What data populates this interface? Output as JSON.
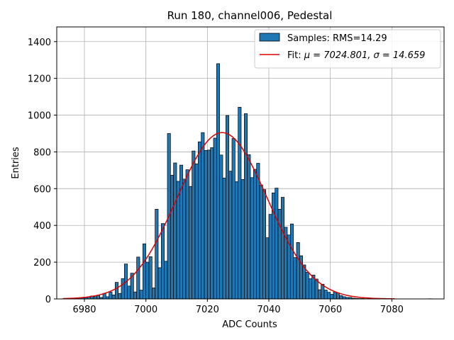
{
  "chart_data": {
    "type": "bar",
    "title": "Run 180, channel006, Pedestal",
    "xlabel": "ADC Counts",
    "ylabel": "Entries",
    "xlim": [
      6971,
      7097
    ],
    "ylim": [
      0,
      1480
    ],
    "xticks": [
      6980,
      7000,
      7020,
      7040,
      7060,
      7080
    ],
    "yticks": [
      0,
      200,
      400,
      600,
      800,
      1000,
      1200,
      1400
    ],
    "grid": true,
    "legend_position": "top-right",
    "colors": {
      "bar": "#1f77b4",
      "fit": "#dd0000"
    },
    "histogram": {
      "name": "Samples: RMS=14.29",
      "bin_start": 6973,
      "bin_width": 1,
      "counts": [
        1,
        0,
        0,
        3,
        2,
        5,
        6,
        7,
        10,
        16,
        12,
        20,
        8,
        30,
        12,
        38,
        22,
        90,
        30,
        110,
        190,
        70,
        140,
        38,
        228,
        48,
        300,
        200,
        230,
        60,
        488,
        170,
        410,
        205,
        900,
        673,
        740,
        640,
        728,
        652,
        703,
        612,
        805,
        735,
        855,
        905,
        808,
        810,
        823,
        875,
        1280,
        783,
        658,
        998,
        695,
        873,
        638,
        1043,
        650,
        1008,
        785,
        660,
        705,
        738,
        620,
        595,
        333,
        460,
        577,
        603,
        488,
        553,
        390,
        348,
        408,
        225,
        307,
        235,
        185,
        145,
        110,
        130,
        108,
        50,
        80,
        48,
        36,
        25,
        38,
        32,
        18,
        12,
        8,
        8,
        4,
        3,
        2,
        2,
        1,
        1,
        0,
        0,
        0,
        0,
        0,
        0,
        0,
        0,
        0,
        0,
        0,
        0,
        0,
        0,
        0,
        0,
        0,
        0,
        0,
        1
      ]
    },
    "fit": {
      "name": "Fit: μ = 7024.801, σ = 14.659",
      "label_prefix": "Fit: ",
      "mu_part": "μ = 7024.801, ",
      "sigma_part": "σ = 14.659",
      "mu": 7024.801,
      "sigma": 14.659,
      "amplitude": 905,
      "x_range": [
        6973,
        7081
      ]
    }
  }
}
